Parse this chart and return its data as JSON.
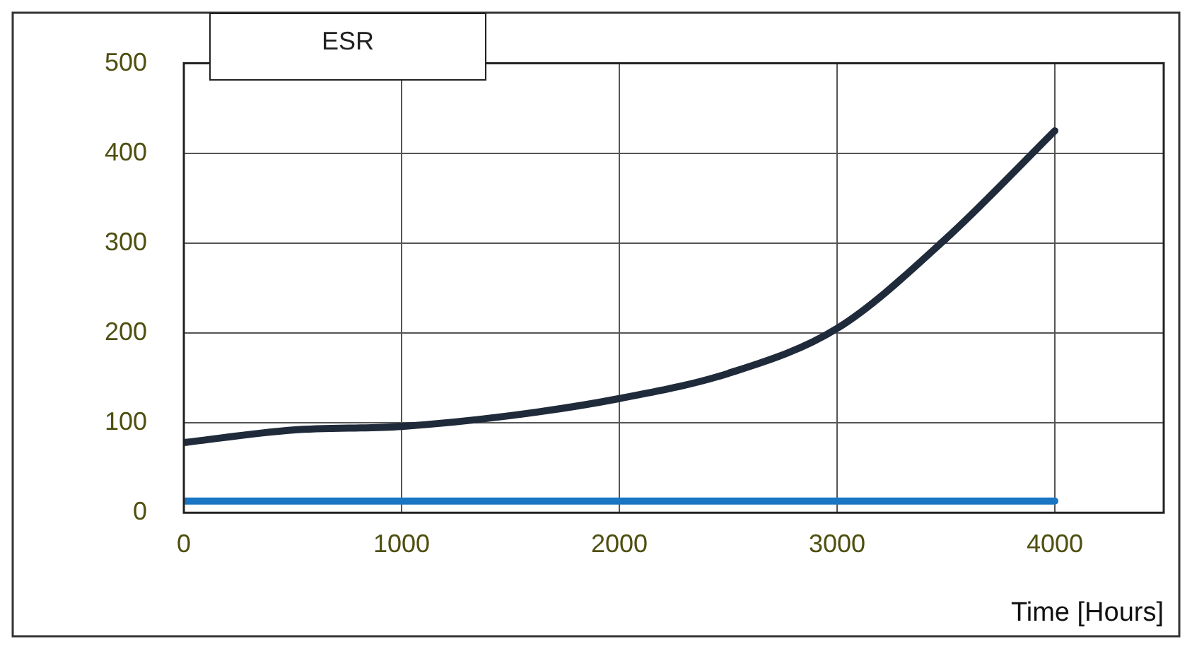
{
  "chart_data": {
    "type": "line",
    "title": "ESR",
    "xlabel": "Time [Hours]",
    "xlim": [
      0,
      4500
    ],
    "xticks": [
      0,
      1000,
      2000,
      3000,
      4000,
      {
        "value": 4500,
        "label": null
      }
    ],
    "ylim": [
      0,
      500
    ],
    "yticks": [
      0,
      100,
      200,
      300,
      400,
      500
    ],
    "grid": true,
    "legend": false,
    "marker": "none",
    "line_style": "solid",
    "series": [
      {
        "color": "#1f2a3a",
        "x": [
          0,
          500,
          1000,
          1500,
          2000,
          2500,
          3000,
          3500,
          4000
        ],
        "values": [
          78,
          92,
          96,
          108,
          127,
          155,
          205,
          305,
          425
        ]
      },
      {
        "color": "#1a75c2",
        "x": [
          0,
          1000,
          2000,
          3000,
          4000
        ],
        "values": [
          13,
          13,
          13,
          13,
          13
        ]
      }
    ]
  }
}
